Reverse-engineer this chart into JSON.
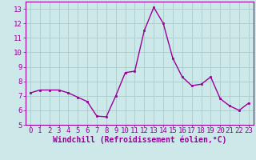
{
  "x": [
    0,
    1,
    2,
    3,
    4,
    5,
    6,
    7,
    8,
    9,
    10,
    11,
    12,
    13,
    14,
    15,
    16,
    17,
    18,
    19,
    20,
    21,
    22,
    23
  ],
  "y": [
    7.2,
    7.4,
    7.4,
    7.4,
    7.2,
    6.9,
    6.6,
    5.6,
    5.55,
    7.0,
    8.6,
    8.7,
    11.5,
    13.1,
    12.0,
    9.6,
    8.3,
    7.7,
    7.8,
    8.3,
    6.8,
    6.3,
    6.0,
    6.5
  ],
  "line_color": "#990099",
  "marker": "s",
  "marker_size": 2,
  "line_width": 1.0,
  "bg_color": "#cce8e8",
  "grid_color": "#aacccc",
  "xlabel": "Windchill (Refroidissement éolien,°C)",
  "ylabel": "",
  "ylim": [
    5,
    13.5
  ],
  "xlim": [
    -0.5,
    23.5
  ],
  "yticks": [
    5,
    6,
    7,
    8,
    9,
    10,
    11,
    12,
    13
  ],
  "xticks": [
    0,
    1,
    2,
    3,
    4,
    5,
    6,
    7,
    8,
    9,
    10,
    11,
    12,
    13,
    14,
    15,
    16,
    17,
    18,
    19,
    20,
    21,
    22,
    23
  ],
  "tick_label_color": "#990099",
  "xlabel_color": "#990099",
  "xlabel_fontsize": 7,
  "tick_fontsize": 6.5
}
